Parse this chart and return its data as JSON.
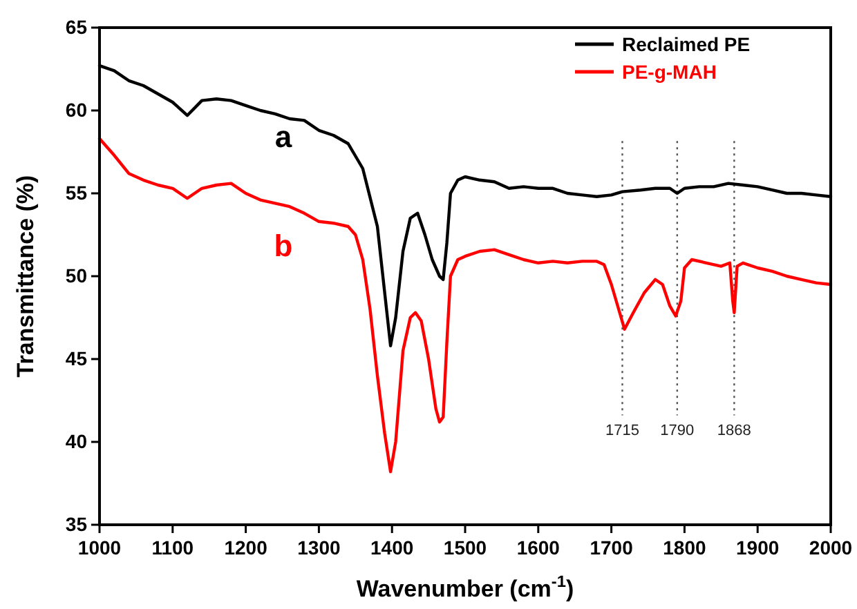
{
  "chart_data": {
    "type": "line",
    "xlabel": "Wavenumber (cm$^{-1}$)",
    "ylabel": "Transmittance (%)",
    "xlim": [
      1000,
      2000
    ],
    "xticks": [
      1000,
      1100,
      1200,
      1300,
      1400,
      1500,
      1600,
      1700,
      1800,
      1900,
      2000
    ],
    "ylim": [
      35,
      65
    ],
    "yticks": [
      35,
      40,
      45,
      50,
      55,
      60,
      65
    ],
    "grid": false,
    "legend": "top right",
    "marker": "none",
    "line_style": "solid",
    "series": [
      {
        "name": "Reclaimed PE",
        "color": "#000000",
        "x": [
          1000,
          1020,
          1040,
          1060,
          1080,
          1100,
          1120,
          1140,
          1160,
          1180,
          1200,
          1220,
          1240,
          1260,
          1280,
          1300,
          1320,
          1340,
          1360,
          1380,
          1390,
          1398,
          1405,
          1415,
          1425,
          1435,
          1445,
          1455,
          1465,
          1470,
          1475,
          1480,
          1490,
          1500,
          1520,
          1540,
          1560,
          1580,
          1600,
          1620,
          1640,
          1660,
          1680,
          1700,
          1715,
          1740,
          1760,
          1780,
          1790,
          1800,
          1820,
          1840,
          1860,
          1880,
          1900,
          1920,
          1940,
          1960,
          1980,
          2000
        ],
        "values": [
          62.7,
          62.4,
          61.8,
          61.5,
          61.0,
          60.5,
          59.7,
          60.6,
          60.7,
          60.6,
          60.3,
          60.0,
          59.8,
          59.5,
          59.4,
          58.8,
          58.5,
          58.0,
          56.5,
          53,
          49,
          45.8,
          47.5,
          51.5,
          53.5,
          53.8,
          52.5,
          51,
          50,
          49.8,
          52,
          55,
          55.8,
          56,
          55.8,
          55.7,
          55.3,
          55.4,
          55.3,
          55.3,
          55.0,
          54.9,
          54.8,
          54.9,
          55.1,
          55.2,
          55.3,
          55.3,
          55.0,
          55.3,
          55.4,
          55.4,
          55.6,
          55.5,
          55.4,
          55.2,
          55.0,
          55.0,
          54.9,
          54.8
        ]
      },
      {
        "name": "PE-g-MAH",
        "color": "#ff0000",
        "x": [
          1000,
          1020,
          1040,
          1060,
          1080,
          1100,
          1120,
          1140,
          1160,
          1180,
          1200,
          1220,
          1240,
          1260,
          1280,
          1300,
          1320,
          1340,
          1350,
          1360,
          1370,
          1380,
          1390,
          1398,
          1405,
          1415,
          1425,
          1432,
          1440,
          1450,
          1460,
          1465,
          1470,
          1475,
          1480,
          1490,
          1500,
          1520,
          1540,
          1560,
          1580,
          1600,
          1620,
          1640,
          1660,
          1680,
          1690,
          1700,
          1710,
          1718,
          1730,
          1745,
          1760,
          1770,
          1780,
          1788,
          1795,
          1800,
          1810,
          1830,
          1850,
          1862,
          1866,
          1868,
          1872,
          1880,
          1900,
          1920,
          1940,
          1960,
          1980,
          2000
        ],
        "values": [
          58.3,
          57.3,
          56.2,
          55.8,
          55.5,
          55.3,
          54.7,
          55.3,
          55.5,
          55.6,
          55.0,
          54.6,
          54.4,
          54.2,
          53.8,
          53.3,
          53.2,
          53.0,
          52.5,
          51,
          48,
          44,
          40.5,
          38.2,
          40,
          45.5,
          47.5,
          47.8,
          47.3,
          45,
          42,
          41.2,
          41.5,
          46,
          50,
          51,
          51.2,
          51.5,
          51.6,
          51.3,
          51.0,
          50.8,
          50.9,
          50.8,
          50.9,
          50.9,
          50.7,
          49.5,
          48,
          46.8,
          47.8,
          49.0,
          49.8,
          49.5,
          48.2,
          47.6,
          48.5,
          50.5,
          51.0,
          50.8,
          50.6,
          50.8,
          48.5,
          47.8,
          50.6,
          50.8,
          50.5,
          50.3,
          50.0,
          49.8,
          49.6,
          49.5
        ]
      }
    ],
    "ref_lines": [
      {
        "axis": "x",
        "value": 1715,
        "label": "1715",
        "color": "#555555",
        "line_style": "dotted"
      },
      {
        "axis": "x",
        "value": 1790,
        "label": "1790",
        "color": "#555555",
        "line_style": "dotted"
      },
      {
        "axis": "x",
        "value": 1868,
        "label": "1868",
        "color": "#555555",
        "line_style": "dotted"
      }
    ],
    "annotations": [
      "a",
      "b"
    ]
  }
}
